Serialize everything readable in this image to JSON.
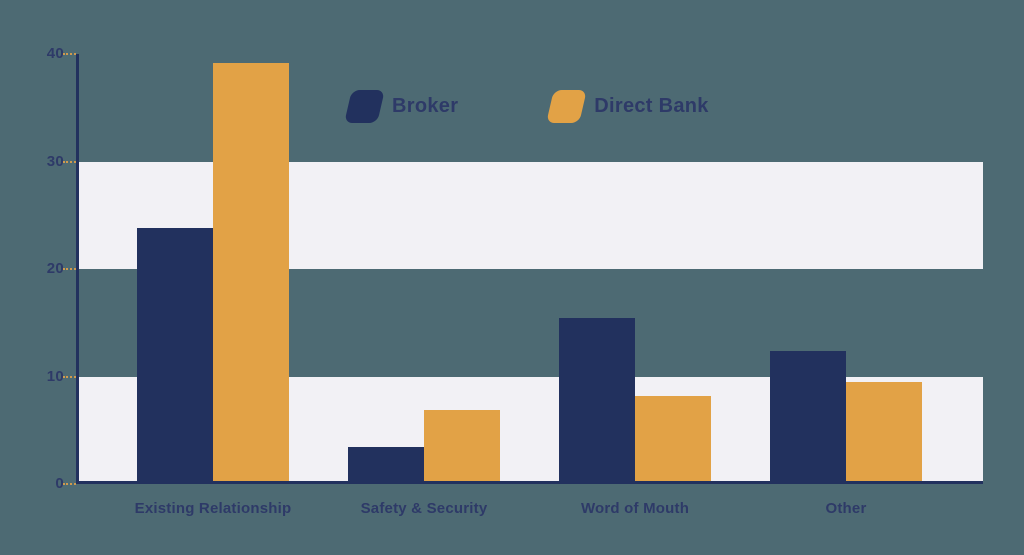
{
  "colors": {
    "background": "#4D6A73",
    "broker": "#22315E",
    "direct_bank": "#E2A246",
    "band": "#F2F1F5",
    "axis": "#22315E",
    "text": "#2E3A68",
    "tick": "#CF9A4E"
  },
  "legend": {
    "items": [
      {
        "label": "Broker",
        "color": "#22315E"
      },
      {
        "label": "Direct Bank",
        "color": "#E2A246"
      }
    ]
  },
  "chart_data": {
    "type": "bar",
    "categories": [
      "Existing Relationship",
      "Safety & Security",
      "Word of Mouth",
      "Other"
    ],
    "series": [
      {
        "name": "Broker",
        "color": "#22315E",
        "values": [
          23.8,
          3.4,
          15.4,
          12.4
        ]
      },
      {
        "name": "Direct Bank",
        "color": "#E2A246",
        "values": [
          39.2,
          6.9,
          8.2,
          9.5
        ]
      }
    ],
    "title": "",
    "xlabel": "",
    "ylabel": "",
    "ylim": [
      0,
      40
    ],
    "yticks": [
      0,
      10,
      20,
      30,
      40
    ],
    "grid_bands": [
      [
        0,
        10
      ],
      [
        20,
        30
      ]
    ],
    "legend_position": "top-center",
    "grid": "horizontal-bands"
  }
}
